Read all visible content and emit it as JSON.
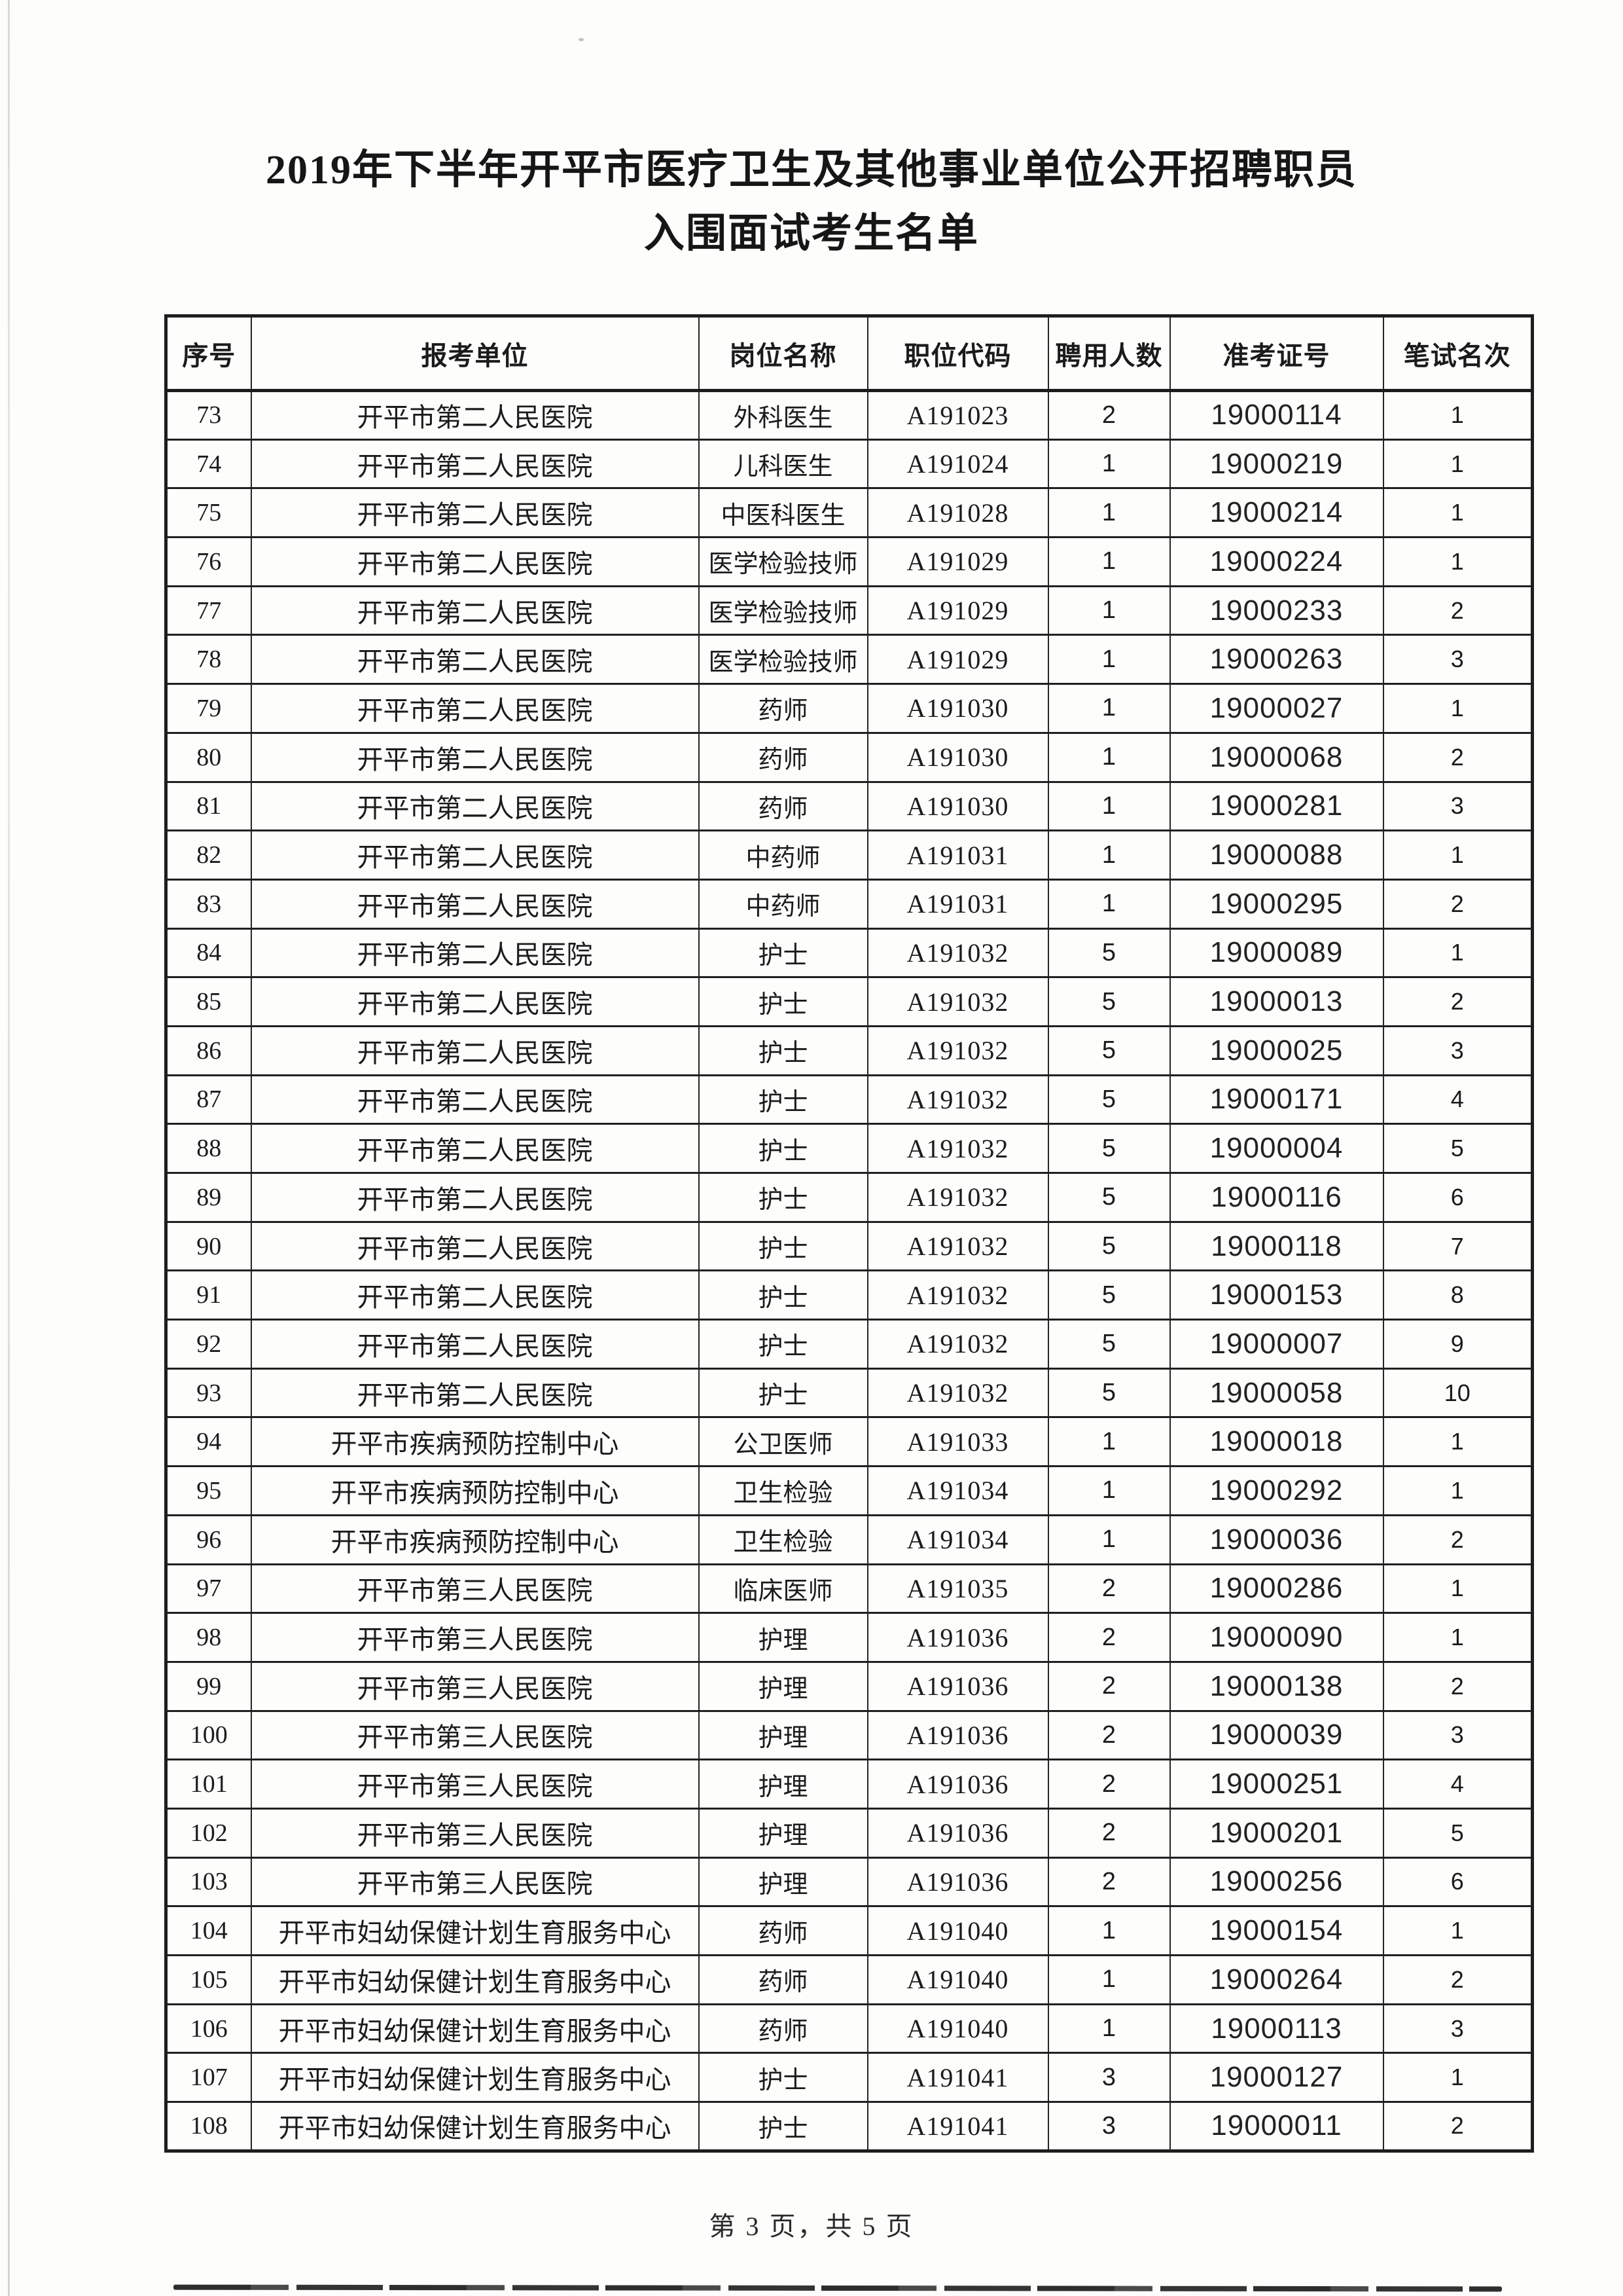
{
  "page": {
    "title_line1": "2019年下半年开平市医疗卫生及其他事业单位公开招聘职员",
    "title_line2": "入围面试考生名单",
    "footer_text": "第 3 页，共 5 页"
  },
  "colors": {
    "text": "#1b1b1b",
    "table_border": "#202020",
    "paper": "#fdfdfc"
  },
  "table": {
    "headers": [
      "序号",
      "报考单位",
      "岗位名称",
      "职位代码",
      "聘用人数",
      "准考证号",
      "笔试名次"
    ],
    "rows": [
      [
        "73",
        "开平市第二人民医院",
        "外科医生",
        "A191023",
        "2",
        "19000114",
        "1"
      ],
      [
        "74",
        "开平市第二人民医院",
        "儿科医生",
        "A191024",
        "1",
        "19000219",
        "1"
      ],
      [
        "75",
        "开平市第二人民医院",
        "中医科医生",
        "A191028",
        "1",
        "19000214",
        "1"
      ],
      [
        "76",
        "开平市第二人民医院",
        "医学检验技师",
        "A191029",
        "1",
        "19000224",
        "1"
      ],
      [
        "77",
        "开平市第二人民医院",
        "医学检验技师",
        "A191029",
        "1",
        "19000233",
        "2"
      ],
      [
        "78",
        "开平市第二人民医院",
        "医学检验技师",
        "A191029",
        "1",
        "19000263",
        "3"
      ],
      [
        "79",
        "开平市第二人民医院",
        "药师",
        "A191030",
        "1",
        "19000027",
        "1"
      ],
      [
        "80",
        "开平市第二人民医院",
        "药师",
        "A191030",
        "1",
        "19000068",
        "2"
      ],
      [
        "81",
        "开平市第二人民医院",
        "药师",
        "A191030",
        "1",
        "19000281",
        "3"
      ],
      [
        "82",
        "开平市第二人民医院",
        "中药师",
        "A191031",
        "1",
        "19000088",
        "1"
      ],
      [
        "83",
        "开平市第二人民医院",
        "中药师",
        "A191031",
        "1",
        "19000295",
        "2"
      ],
      [
        "84",
        "开平市第二人民医院",
        "护士",
        "A191032",
        "5",
        "19000089",
        "1"
      ],
      [
        "85",
        "开平市第二人民医院",
        "护士",
        "A191032",
        "5",
        "19000013",
        "2"
      ],
      [
        "86",
        "开平市第二人民医院",
        "护士",
        "A191032",
        "5",
        "19000025",
        "3"
      ],
      [
        "87",
        "开平市第二人民医院",
        "护士",
        "A191032",
        "5",
        "19000171",
        "4"
      ],
      [
        "88",
        "开平市第二人民医院",
        "护士",
        "A191032",
        "5",
        "19000004",
        "5"
      ],
      [
        "89",
        "开平市第二人民医院",
        "护士",
        "A191032",
        "5",
        "19000116",
        "6"
      ],
      [
        "90",
        "开平市第二人民医院",
        "护士",
        "A191032",
        "5",
        "19000118",
        "7"
      ],
      [
        "91",
        "开平市第二人民医院",
        "护士",
        "A191032",
        "5",
        "19000153",
        "8"
      ],
      [
        "92",
        "开平市第二人民医院",
        "护士",
        "A191032",
        "5",
        "19000007",
        "9"
      ],
      [
        "93",
        "开平市第二人民医院",
        "护士",
        "A191032",
        "5",
        "19000058",
        "10"
      ],
      [
        "94",
        "开平市疾病预防控制中心",
        "公卫医师",
        "A191033",
        "1",
        "19000018",
        "1"
      ],
      [
        "95",
        "开平市疾病预防控制中心",
        "卫生检验",
        "A191034",
        "1",
        "19000292",
        "1"
      ],
      [
        "96",
        "开平市疾病预防控制中心",
        "卫生检验",
        "A191034",
        "1",
        "19000036",
        "2"
      ],
      [
        "97",
        "开平市第三人民医院",
        "临床医师",
        "A191035",
        "2",
        "19000286",
        "1"
      ],
      [
        "98",
        "开平市第三人民医院",
        "护理",
        "A191036",
        "2",
        "19000090",
        "1"
      ],
      [
        "99",
        "开平市第三人民医院",
        "护理",
        "A191036",
        "2",
        "19000138",
        "2"
      ],
      [
        "100",
        "开平市第三人民医院",
        "护理",
        "A191036",
        "2",
        "19000039",
        "3"
      ],
      [
        "101",
        "开平市第三人民医院",
        "护理",
        "A191036",
        "2",
        "19000251",
        "4"
      ],
      [
        "102",
        "开平市第三人民医院",
        "护理",
        "A191036",
        "2",
        "19000201",
        "5"
      ],
      [
        "103",
        "开平市第三人民医院",
        "护理",
        "A191036",
        "2",
        "19000256",
        "6"
      ],
      [
        "104",
        "开平市妇幼保健计划生育服务中心",
        "药师",
        "A191040",
        "1",
        "19000154",
        "1"
      ],
      [
        "105",
        "开平市妇幼保健计划生育服务中心",
        "药师",
        "A191040",
        "1",
        "19000264",
        "2"
      ],
      [
        "106",
        "开平市妇幼保健计划生育服务中心",
        "药师",
        "A191040",
        "1",
        "19000113",
        "3"
      ],
      [
        "107",
        "开平市妇幼保健计划生育服务中心",
        "护士",
        "A191041",
        "3",
        "19000127",
        "1"
      ],
      [
        "108",
        "开平市妇幼保健计划生育服务中心",
        "护士",
        "A191041",
        "3",
        "19000011",
        "2"
      ]
    ]
  }
}
